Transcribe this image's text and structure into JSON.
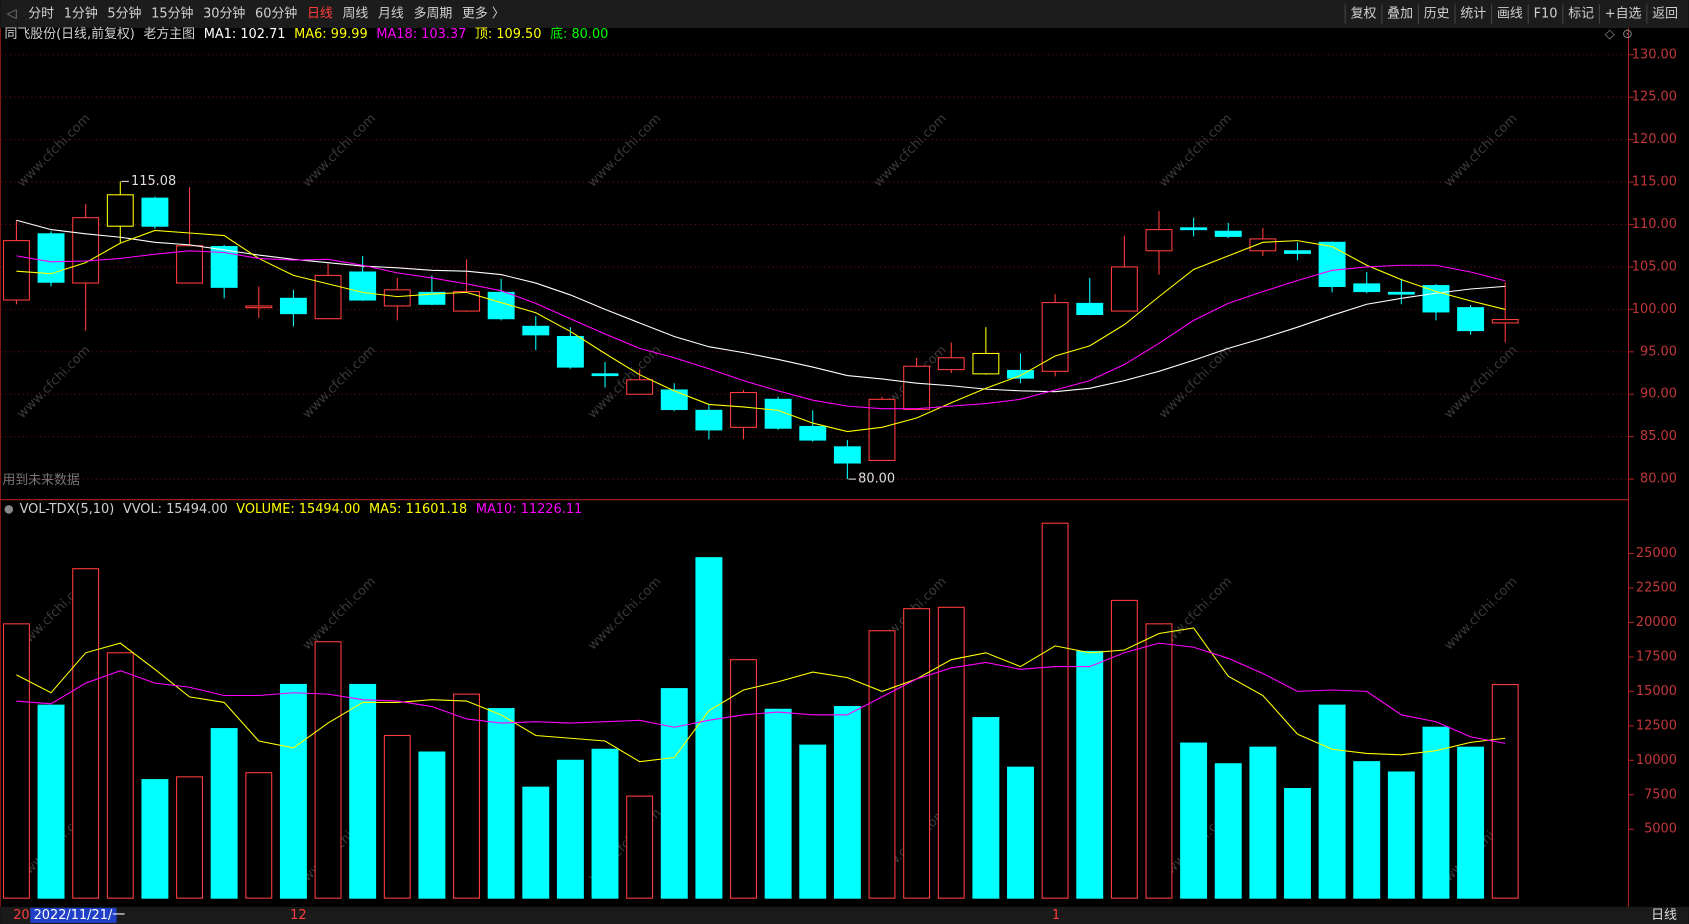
{
  "toolbar": {
    "left": [
      "分时",
      "1分钟",
      "5分钟",
      "15分钟",
      "30分钟",
      "60分钟",
      "日线",
      "周线",
      "月线",
      "多周期",
      "更多 〉"
    ],
    "active": 6,
    "right": [
      "复权",
      "叠加",
      "历史",
      "统计",
      "画线",
      "F10",
      "标记",
      "+自选",
      "返回"
    ]
  },
  "watermark": "www.cfchi.com",
  "note": "用到未来数据",
  "x_labels": [
    {
      "index": 0,
      "label": "20"
    },
    {
      "index": 1,
      "label": "2022/11/21/一"
    },
    {
      "index": 8,
      "label": "12"
    },
    {
      "index": 30,
      "label": "1"
    }
  ],
  "period_label": "日线",
  "chart_data": [
    {
      "type": "candlestick",
      "header": [
        {
          "text": "同飞股份(日线,前复权)",
          "color": "#d0d0d0"
        },
        {
          "text": "老方主图",
          "color": "#d0d0d0"
        },
        {
          "text": "MA1: 102.71",
          "color": "#ffffff"
        },
        {
          "text": "MA6: 99.99",
          "color": "#ffff00"
        },
        {
          "text": "MA18: 103.37",
          "color": "#ff00ff"
        },
        {
          "text": "顶: 109.50",
          "color": "#ffff00"
        },
        {
          "text": "底: 80.00",
          "color": "#00ff00"
        }
      ],
      "open": [
        101.1,
        108.9,
        103.1,
        109.8,
        113.1,
        103.1,
        107.4,
        100.2,
        101.3,
        98.9,
        104.4,
        100.4,
        102.0,
        99.8,
        102.0,
        98.0,
        96.8,
        92.4,
        90.0,
        90.5,
        88.1,
        86.1,
        89.4,
        86.2,
        83.8,
        82.2,
        88.2,
        92.9,
        92.4,
        92.8,
        92.7,
        100.7,
        99.8,
        106.9,
        109.6,
        109.2,
        106.9,
        106.9,
        107.9,
        103.0,
        102.0,
        102.8,
        100.2,
        98.4
      ],
      "high": [
        110.5,
        109.2,
        112.4,
        115.08,
        113.3,
        114.4,
        107.6,
        102.7,
        102.3,
        105.4,
        106.3,
        103.7,
        104.0,
        105.9,
        103.6,
        99.2,
        97.9,
        93.8,
        92.9,
        91.3,
        88.9,
        90.5,
        89.7,
        88.1,
        84.6,
        89.7,
        94.3,
        96.1,
        97.9,
        94.8,
        101.8,
        103.7,
        108.7,
        111.6,
        110.8,
        110.2,
        109.6,
        107.9,
        108.0,
        104.4,
        103.6,
        103.0,
        100.5,
        103.2
      ],
      "low": [
        100.6,
        102.7,
        97.5,
        107.9,
        109.5,
        103.1,
        101.3,
        99.0,
        98.0,
        98.9,
        101.0,
        98.7,
        100.5,
        99.7,
        98.7,
        95.2,
        93.0,
        90.8,
        90.0,
        88.0,
        84.7,
        84.7,
        85.8,
        84.4,
        80.0,
        82.2,
        88.1,
        92.5,
        92.3,
        91.3,
        92.1,
        99.3,
        99.8,
        104.1,
        108.6,
        108.4,
        106.3,
        105.8,
        102.0,
        101.9,
        100.6,
        98.7,
        97.0,
        96.1
      ],
      "close": [
        108.1,
        103.2,
        110.8,
        113.5,
        109.8,
        107.5,
        102.6,
        100.4,
        99.5,
        104.0,
        101.1,
        102.3,
        100.6,
        102.1,
        98.9,
        97.0,
        93.2,
        92.2,
        91.7,
        88.2,
        85.8,
        90.2,
        86.0,
        84.6,
        81.9,
        89.4,
        93.3,
        94.3,
        94.8,
        91.9,
        100.8,
        99.4,
        105.0,
        109.4,
        109.4,
        108.6,
        108.3,
        106.6,
        102.7,
        102.1,
        101.8,
        99.7,
        97.5,
        98.8
      ],
      "candle_colors": [
        "#ff3c3c",
        "#00ffff",
        "#ff3c3c",
        "#ffff00",
        "#00ffff",
        "#ff3c3c",
        "#00ffff",
        "#ff3c3c",
        "#00ffff",
        "#ff3c3c",
        "#00ffff",
        "#ff3c3c",
        "#00ffff",
        "#ff3c3c",
        "#00ffff",
        "#00ffff",
        "#00ffff",
        "#00ffff",
        "#ff3c3c",
        "#00ffff",
        "#00ffff",
        "#ff3c3c",
        "#00ffff",
        "#00ffff",
        "#00ffff",
        "#ff3c3c",
        "#ff3c3c",
        "#ff3c3c",
        "#ffff00",
        "#00ffff",
        "#ff3c3c",
        "#00ffff",
        "#ff3c3c",
        "#ff3c3c",
        "#00ffff",
        "#00ffff",
        "#ff3c3c",
        "#00ffff",
        "#00ffff",
        "#00ffff",
        "#00ffff",
        "#00ffff",
        "#00ffff",
        "#ff3c3c"
      ],
      "solid_color": "#00ffff",
      "series": [
        {
          "name": "MA1",
          "color": "#ffffff",
          "values": [
            110.5,
            109.4,
            108.9,
            108.5,
            107.9,
            107.6,
            107.0,
            106.4,
            105.9,
            105.5,
            105.1,
            104.9,
            104.6,
            104.5,
            104.1,
            103.1,
            101.7,
            100.0,
            98.4,
            96.8,
            95.6,
            94.9,
            94.1,
            93.2,
            92.2,
            91.8,
            91.3,
            91.0,
            90.6,
            90.4,
            90.3,
            90.7,
            91.6,
            92.7,
            94.0,
            95.4,
            96.6,
            97.9,
            99.3,
            100.6,
            101.3,
            101.9,
            102.4,
            102.71
          ]
        },
        {
          "name": "MA6",
          "color": "#ffff00",
          "values": [
            104.5,
            104.2,
            105.5,
            107.8,
            109.3,
            109.0,
            108.7,
            106.0,
            104.0,
            103.0,
            102.0,
            101.5,
            101.8,
            102.0,
            100.8,
            99.6,
            97.4,
            94.8,
            92.3,
            90.4,
            88.8,
            88.5,
            88.1,
            86.6,
            85.6,
            86.1,
            87.2,
            89.0,
            90.7,
            92.2,
            94.5,
            95.7,
            98.2,
            101.5,
            104.7,
            106.3,
            107.9,
            108.1,
            107.4,
            105.2,
            103.5,
            102.1,
            101.0,
            99.99
          ]
        },
        {
          "name": "MA18",
          "color": "#ff00ff",
          "values": [
            106.3,
            105.6,
            105.7,
            106.0,
            106.5,
            106.9,
            106.7,
            106.0,
            105.8,
            105.9,
            105.2,
            104.3,
            103.7,
            103.0,
            102.2,
            100.7,
            98.9,
            97.1,
            95.4,
            94.3,
            93.0,
            91.6,
            90.4,
            89.3,
            88.6,
            88.3,
            88.3,
            88.6,
            88.9,
            89.4,
            90.5,
            91.6,
            93.5,
            96.0,
            98.7,
            100.7,
            102.1,
            103.4,
            104.6,
            105.0,
            105.2,
            105.2,
            104.4,
            103.37
          ]
        }
      ],
      "annotations": [
        {
          "index": 3,
          "value": 115.08,
          "label": "115.08"
        },
        {
          "index": 24,
          "value": 80.0,
          "label": "80.00"
        }
      ],
      "ylim": [
        77.7,
        132.9
      ],
      "yticks": [
        {
          "value": 80,
          "label": "80.00"
        },
        {
          "value": 85,
          "label": "85.00"
        },
        {
          "value": 90,
          "label": "90.00"
        },
        {
          "value": 95,
          "label": "95.00"
        },
        {
          "value": 100,
          "label": "100.00"
        },
        {
          "value": 105,
          "label": "105.00"
        },
        {
          "value": 110,
          "label": "110.00"
        },
        {
          "value": 115,
          "label": "115.00"
        },
        {
          "value": 120,
          "label": "120.00"
        },
        {
          "value": 125,
          "label": "125.00"
        },
        {
          "value": 130,
          "label": "130.00"
        }
      ],
      "grid": true
    },
    {
      "type": "bar",
      "header": [
        {
          "text": "VOL-TDX(5,10)",
          "color": "#d0d0d0"
        },
        {
          "text": "VVOL: 15494.00",
          "color": "#d0d0d0"
        },
        {
          "text": "VOLUME: 15494.00",
          "color": "#ffff00"
        },
        {
          "text": "MA5: 11601.18",
          "color": "#ffff00"
        },
        {
          "text": "MA10: 11226.11",
          "color": "#ff00ff"
        }
      ],
      "values": [
        19900,
        14000,
        23900,
        17800,
        8600,
        8800,
        12300,
        9100,
        15500,
        18600,
        15500,
        11800,
        10600,
        14800,
        13750,
        8050,
        10000,
        10800,
        7400,
        15200,
        24700,
        17300,
        13700,
        11100,
        13900,
        19400,
        21000,
        21100,
        13100,
        9500,
        27200,
        17900,
        21600,
        19900,
        11250,
        9750,
        10950,
        7950,
        14000,
        9900,
        9150,
        12400,
        10950,
        15494
      ],
      "bar_colors": [
        "#ff3c3c",
        "#00ffff",
        "#ff3c3c",
        "#ff3c3c",
        "#00ffff",
        "#ff3c3c",
        "#00ffff",
        "#ff3c3c",
        "#00ffff",
        "#ff3c3c",
        "#00ffff",
        "#ff3c3c",
        "#00ffff",
        "#ff3c3c",
        "#00ffff",
        "#00ffff",
        "#00ffff",
        "#00ffff",
        "#ff3c3c",
        "#00ffff",
        "#00ffff",
        "#ff3c3c",
        "#00ffff",
        "#00ffff",
        "#00ffff",
        "#ff3c3c",
        "#ff3c3c",
        "#ff3c3c",
        "#00ffff",
        "#00ffff",
        "#ff3c3c",
        "#00ffff",
        "#ff3c3c",
        "#ff3c3c",
        "#00ffff",
        "#00ffff",
        "#00ffff",
        "#00ffff",
        "#00ffff",
        "#00ffff",
        "#00ffff",
        "#00ffff",
        "#00ffff",
        "#ff3c3c"
      ],
      "solid_color": "#00ffff",
      "series": [
        {
          "name": "MA5",
          "color": "#ffff00",
          "values": [
            16200,
            14900,
            17800,
            18500,
            16600,
            14600,
            14200,
            11400,
            10900,
            12700,
            14200,
            14200,
            14400,
            14300,
            13300,
            11800,
            11600,
            11400,
            9900,
            10200,
            13600,
            15100,
            15700,
            16400,
            16000,
            15000,
            15900,
            17300,
            17800,
            16800,
            18300,
            17800,
            18000,
            19200,
            19600,
            16100,
            14700,
            11900,
            10800,
            10500,
            10400,
            10700,
            11300,
            11601.18
          ]
        },
        {
          "name": "MA10",
          "color": "#ff00ff",
          "values": [
            14300,
            14100,
            15600,
            16500,
            15600,
            15300,
            14700,
            14700,
            14900,
            14800,
            14400,
            14300,
            13900,
            13000,
            12700,
            12800,
            12700,
            12800,
            12900,
            12400,
            12900,
            13300,
            13500,
            13300,
            13300,
            14600,
            15900,
            16700,
            17100,
            16600,
            16800,
            16800,
            17800,
            18500,
            18200,
            17400,
            16300,
            15000,
            15100,
            15000,
            13300,
            12800,
            11700,
            11226.11
          ]
        }
      ],
      "ylim": [
        0,
        28750
      ],
      "yticks": [
        5000,
        7500,
        10000,
        12500,
        15000,
        17500,
        20000,
        22500,
        25000
      ],
      "grid": false
    }
  ]
}
